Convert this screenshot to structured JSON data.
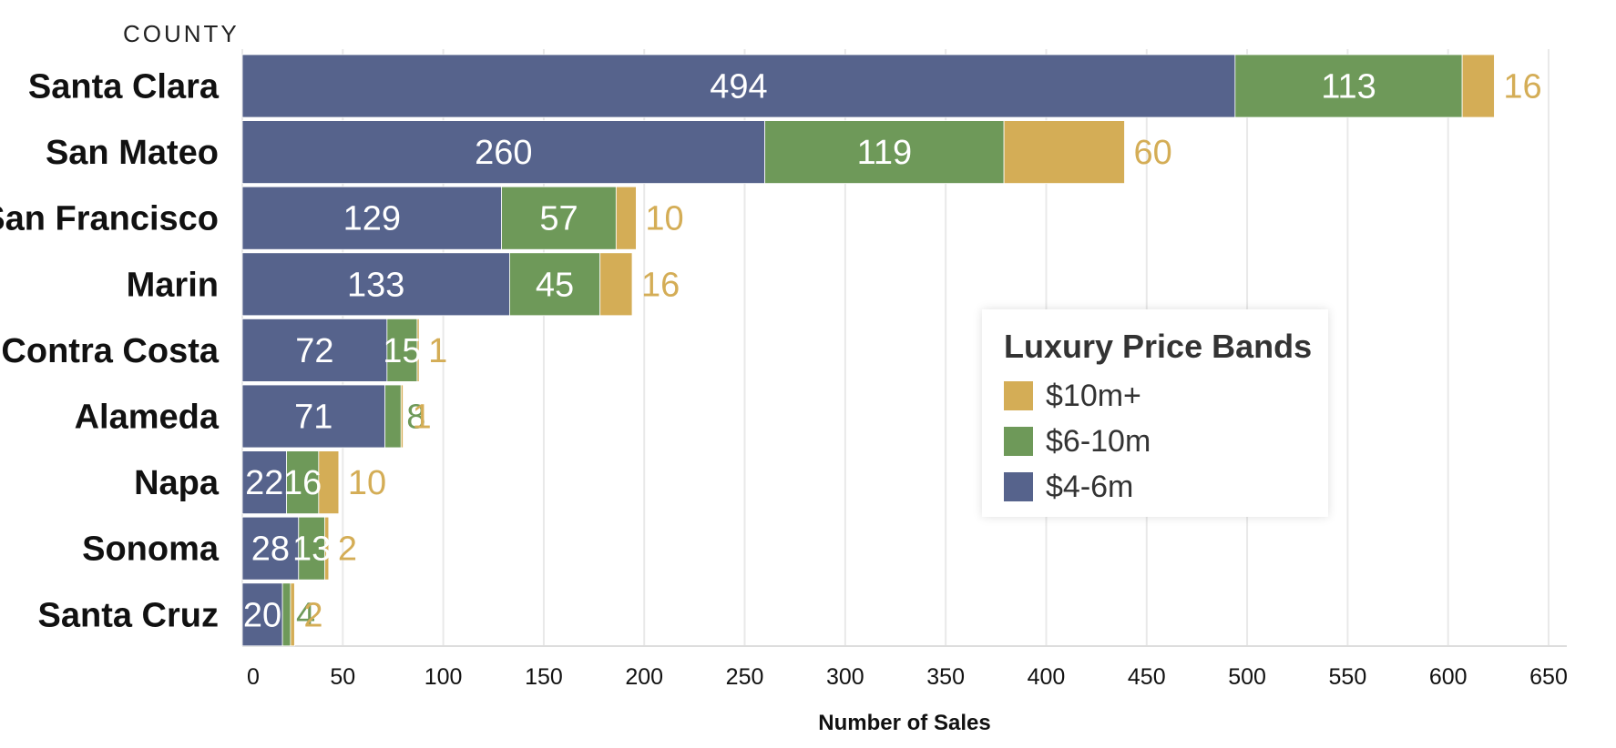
{
  "chart_data": {
    "type": "bar",
    "orientation": "horizontal",
    "stacked": true,
    "title": "",
    "ylabel": "COUNTY",
    "xlabel": "Number of Sales",
    "xlim": [
      0,
      650
    ],
    "xticks": [
      0,
      50,
      100,
      150,
      200,
      250,
      300,
      350,
      400,
      450,
      500,
      550,
      600,
      650
    ],
    "grid": true,
    "legend_position": "right",
    "categories": [
      "Santa Clara",
      "San Mateo",
      "San Francisco",
      "Marin",
      "Contra Costa",
      "Alameda",
      "Napa",
      "Sonoma",
      "Santa Cruz"
    ],
    "series": [
      {
        "name": "$4-6m",
        "color": "#56638c",
        "values": [
          494,
          260,
          129,
          133,
          72,
          71,
          22,
          28,
          20
        ]
      },
      {
        "name": "$6-10m",
        "color": "#6e9959",
        "values": [
          113,
          119,
          57,
          45,
          15,
          8,
          16,
          13,
          4
        ]
      },
      {
        "name": "$10m+",
        "color": "#d4ad56",
        "values": [
          16,
          60,
          10,
          16,
          1,
          1,
          10,
          2,
          2
        ]
      }
    ]
  },
  "legend": {
    "title": "Luxury Price Bands",
    "items": [
      {
        "label": "$10m+",
        "color": "#d4ad56"
      },
      {
        "label": "$6-10m",
        "color": "#6e9959"
      },
      {
        "label": "$4-6m",
        "color": "#56638c"
      }
    ]
  }
}
